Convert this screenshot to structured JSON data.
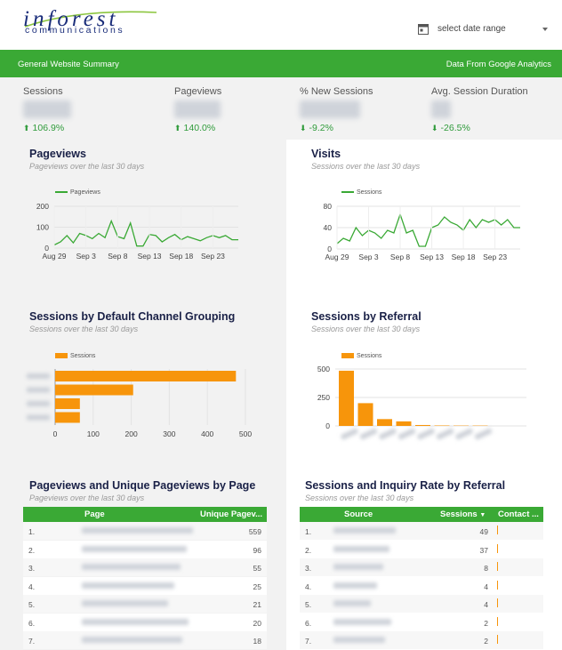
{
  "header": {
    "logo_main": "inforest",
    "logo_sub": "communications",
    "date_range_label": "select date range"
  },
  "banner": {
    "left": "General Website Summary",
    "right": "Data From Google Analytics"
  },
  "kpis": [
    {
      "label": "Sessions",
      "delta": "106.9%",
      "direction": "up"
    },
    {
      "label": "Pageviews",
      "delta": "140.0%",
      "direction": "up"
    },
    {
      "label": "% New Sessions",
      "delta": "-9.2%",
      "direction": "down"
    },
    {
      "label": "Avg. Session Duration",
      "delta": "-26.5%",
      "direction": "down"
    }
  ],
  "panels": {
    "pageviews": {
      "title": "Pageviews",
      "subtitle": "Pageviews over the last 30 days",
      "legend": "Pageviews"
    },
    "visits": {
      "title": "Visits",
      "subtitle": "Sessions over the last 30 days",
      "legend": "Sessions"
    },
    "channel": {
      "title": "Sessions by Default Channel Grouping",
      "subtitle": "Sessions over the last 30 days",
      "legend": "Sessions"
    },
    "referral": {
      "title": "Sessions by Referral",
      "subtitle": "Sessions over the last 30 days",
      "legend": "Sessions"
    },
    "pages_table": {
      "title": "Pageviews and Unique Pageviews by Page",
      "subtitle": "Pageviews over the last 30 days"
    },
    "referral_table": {
      "title": "Sessions and Inquiry Rate by Referral",
      "subtitle": "Sessions over the last 30 days"
    }
  },
  "chart_data": [
    {
      "type": "line",
      "legend": "Pageviews",
      "x_ticks": [
        "Aug 29",
        "Sep 3",
        "Sep 8",
        "Sep 13",
        "Sep 18",
        "Sep 23"
      ],
      "y_ticks": [
        0,
        100,
        200
      ],
      "ylim": [
        0,
        200
      ],
      "series": [
        {
          "name": "Pageviews",
          "values": [
            15,
            30,
            60,
            25,
            70,
            60,
            45,
            70,
            50,
            130,
            55,
            45,
            120,
            10,
            10,
            65,
            60,
            30,
            50,
            65,
            40,
            55,
            45,
            35,
            50,
            60,
            50,
            60,
            40,
            40
          ]
        }
      ]
    },
    {
      "type": "line",
      "legend": "Sessions",
      "x_ticks": [
        "Aug 29",
        "Sep 3",
        "Sep 8",
        "Sep 13",
        "Sep 18",
        "Sep 23"
      ],
      "y_ticks": [
        0,
        40,
        80
      ],
      "ylim": [
        0,
        80
      ],
      "series": [
        {
          "name": "Sessions",
          "values": [
            10,
            20,
            15,
            40,
            25,
            35,
            30,
            20,
            35,
            30,
            65,
            30,
            35,
            5,
            5,
            40,
            45,
            60,
            50,
            45,
            35,
            55,
            40,
            55,
            50,
            55,
            45,
            55,
            40,
            40
          ]
        }
      ]
    },
    {
      "type": "bar",
      "orientation": "horizontal",
      "legend": "Sessions",
      "x_ticks": [
        0,
        100,
        200,
        300,
        400,
        500
      ],
      "xlim": [
        0,
        500
      ],
      "values": [
        475,
        205,
        65,
        65
      ]
    },
    {
      "type": "bar",
      "legend": "Sessions",
      "y_ticks": [
        0,
        250,
        500
      ],
      "ylim": [
        0,
        500
      ],
      "values": [
        485,
        200,
        60,
        40,
        8,
        4,
        3,
        3
      ]
    }
  ],
  "pages_table": {
    "headers": [
      "Page",
      "Unique Pagev..."
    ],
    "rows": [
      {
        "n": "1.",
        "v": "559"
      },
      {
        "n": "2.",
        "v": "96"
      },
      {
        "n": "3.",
        "v": "55"
      },
      {
        "n": "4.",
        "v": "25"
      },
      {
        "n": "5.",
        "v": "21"
      },
      {
        "n": "6.",
        "v": "20"
      },
      {
        "n": "7.",
        "v": "18"
      }
    ]
  },
  "referral_table": {
    "headers": [
      "Source",
      "Sessions",
      "Contact ..."
    ],
    "rows": [
      {
        "n": "1.",
        "v": "49"
      },
      {
        "n": "2.",
        "v": "37"
      },
      {
        "n": "3.",
        "v": "8"
      },
      {
        "n": "4.",
        "v": "4"
      },
      {
        "n": "5.",
        "v": "4"
      },
      {
        "n": "6.",
        "v": "2"
      },
      {
        "n": "7.",
        "v": "2"
      }
    ]
  },
  "colors": {
    "green": "#3aa935",
    "orange": "#f7950b",
    "navy": "#1a2147"
  }
}
